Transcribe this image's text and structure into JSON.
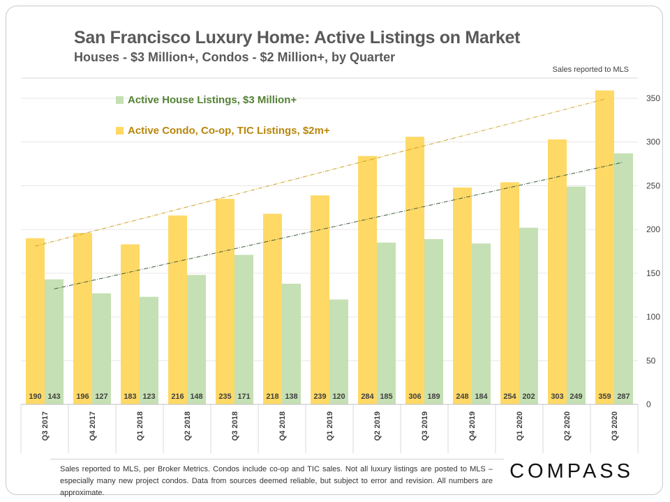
{
  "header": {
    "title": "San Francisco Luxury Home: Active Listings on Market",
    "subtitle": "Houses - $3 Million+,  Condos - $2 Million+,  by Quarter",
    "source_note": "Sales reported to MLS"
  },
  "legend": {
    "house_label": "Active House Listings, $3 Million+",
    "condo_label": "Active Condo, Co-op, TIC Listings, $2m+"
  },
  "footnote": "Sales reported to MLS, per Broker Metrics. Condos include co-op and TIC sales. Not all luxury listings are posted to MLS – especially many new project condos. Data from sources deemed reliable, but subject to error and revision. All numbers are approximate.",
  "logo": "COMPASS",
  "colors": {
    "condo": "#ffd966",
    "house": "#c5e0b4",
    "condo_trend": "#c9a227",
    "house_trend": "#3a5a3a",
    "grid": "#e6e6e6",
    "axis_text": "#404040"
  },
  "chart_data": {
    "type": "bar",
    "title": "San Francisco Luxury Home: Active Listings on Market",
    "categories": [
      "Q3 2017",
      "Q4 2017",
      "Q1 2018",
      "Q2 2018",
      "Q3 2018",
      "Q4 2018",
      "Q1 2019",
      "Q2 2019",
      "Q3 2019",
      "Q4 2019",
      "Q1 2020",
      "Q2 2020",
      "Q3 2020"
    ],
    "series": [
      {
        "name": "Active Condo, Co-op, TIC Listings, $2m+",
        "key": "condo",
        "values": [
          190,
          196,
          183,
          216,
          235,
          218,
          239,
          284,
          306,
          248,
          254,
          303,
          359
        ]
      },
      {
        "name": "Active House Listings, $3 Million+",
        "key": "house",
        "values": [
          143,
          127,
          123,
          148,
          171,
          138,
          120,
          185,
          189,
          184,
          202,
          249,
          287
        ]
      }
    ],
    "trendlines": [
      {
        "series": "condo",
        "start": 181,
        "end": 349
      },
      {
        "series": "house",
        "start": 132,
        "end": 277
      }
    ],
    "y_ticks": [
      0,
      50,
      100,
      150,
      200,
      250,
      300,
      350
    ],
    "ylim": [
      0,
      365
    ],
    "yaxis_position": "right",
    "grid": true,
    "legend_position": "top-left"
  }
}
